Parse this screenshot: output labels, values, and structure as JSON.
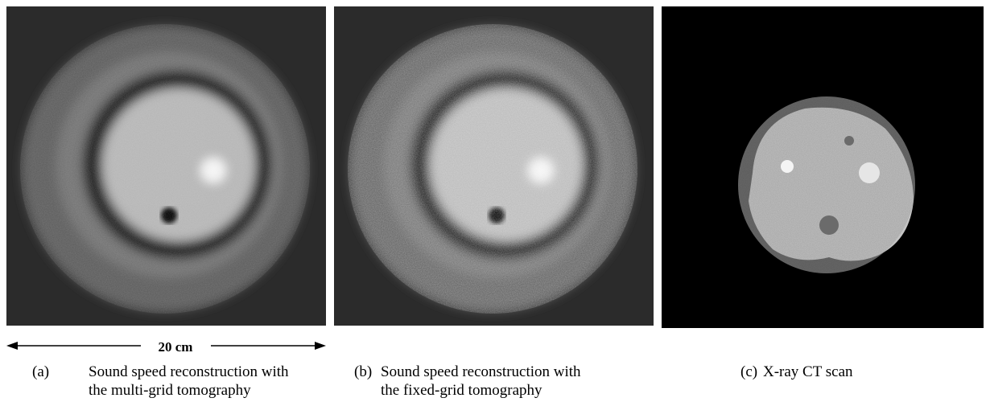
{
  "scale_bar": "20 cm",
  "panels": [
    {
      "label": "(a)",
      "caption": [
        "Sound speed reconstruction with",
        "the multi-grid tomography"
      ]
    },
    {
      "label": "(b)",
      "caption": [
        "Sound speed reconstruction with",
        "the fixed-grid tomography"
      ]
    },
    {
      "label": "(c)",
      "caption": [
        "X-ray CT scan"
      ]
    }
  ]
}
